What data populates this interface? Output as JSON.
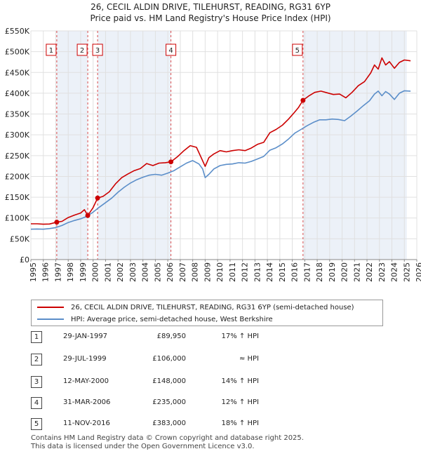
{
  "title": {
    "line1": "26, CECIL ALDIN DRIVE, TILEHURST, READING, RG31 6YP",
    "line2": "Price paid vs. HM Land Registry's House Price Index (HPI)"
  },
  "colors": {
    "property": "#cc0000",
    "hpi": "#5b8ec9",
    "shade": "#dde6f3",
    "marker": "#cc0000"
  },
  "legend": {
    "property": "26, CECIL ALDIN DRIVE, TILEHURST, READING, RG31 6YP (semi-detached house)",
    "hpi": "HPI: Average price, semi-detached house, West Berkshire"
  },
  "sales": [
    {
      "num": "1",
      "date": "29-JAN-1997",
      "price": "£89,950",
      "hpi": "17% ↑ HPI"
    },
    {
      "num": "2",
      "date": "29-JUL-1999",
      "price": "£106,000",
      "hpi": "≈ HPI"
    },
    {
      "num": "3",
      "date": "12-MAY-2000",
      "price": "£148,000",
      "hpi": "14% ↑ HPI"
    },
    {
      "num": "4",
      "date": "31-MAR-2006",
      "price": "£235,000",
      "hpi": "12% ↑ HPI"
    },
    {
      "num": "5",
      "date": "11-NOV-2016",
      "price": "£383,000",
      "hpi": "18% ↑ HPI"
    }
  ],
  "footer": {
    "line1": "Contains HM Land Registry data © Crown copyright and database right 2025.",
    "line2": "This data is licensed under the Open Government Licence v3.0."
  },
  "chart_data": {
    "type": "line",
    "title": "Price paid vs. HM Land Registry's House Price Index (HPI)",
    "xlabel": "",
    "ylabel": "",
    "xlim": [
      1995,
      2026
    ],
    "ylim": [
      0,
      550000
    ],
    "x_ticks": [
      1995,
      1996,
      1997,
      1998,
      1999,
      2000,
      2001,
      2002,
      2003,
      2004,
      2005,
      2006,
      2007,
      2008,
      2009,
      2010,
      2011,
      2012,
      2013,
      2014,
      2015,
      2016,
      2017,
      2018,
      2019,
      2020,
      2021,
      2022,
      2023,
      2024,
      2025,
      2026
    ],
    "y_ticks": [
      {
        "value": 0,
        "label": "£0"
      },
      {
        "value": 50000,
        "label": "£50K"
      },
      {
        "value": 100000,
        "label": "£100K"
      },
      {
        "value": 150000,
        "label": "£150K"
      },
      {
        "value": 200000,
        "label": "£200K"
      },
      {
        "value": 250000,
        "label": "£250K"
      },
      {
        "value": 300000,
        "label": "£300K"
      },
      {
        "value": 350000,
        "label": "£350K"
      },
      {
        "value": 400000,
        "label": "£400K"
      },
      {
        "value": 450000,
        "label": "£450K"
      },
      {
        "value": 500000,
        "label": "£500K"
      },
      {
        "value": 550000,
        "label": "£550K"
      }
    ],
    "grid": true,
    "shaded_ranges": [
      [
        1997.08,
        1999.57
      ],
      [
        2000.36,
        2006.25
      ],
      [
        2016.86,
        2025.2
      ]
    ],
    "sale_markers": [
      {
        "label": "1",
        "x": 1997.08,
        "y": 89950
      },
      {
        "label": "2",
        "x": 1999.57,
        "y": 106000
      },
      {
        "label": "3",
        "x": 2000.36,
        "y": 148000
      },
      {
        "label": "4",
        "x": 2006.25,
        "y": 235000
      },
      {
        "label": "5",
        "x": 2016.86,
        "y": 383000
      }
    ],
    "series": [
      {
        "name": "26, CECIL ALDIN DRIVE, TILEHURST, READING, RG31 6YP (semi-detached house)",
        "color": "#cc0000",
        "x": [
          1995.0,
          1995.5,
          1996.0,
          1996.5,
          1997.08,
          1997.5,
          1998.0,
          1998.5,
          1999.0,
          1999.3,
          1999.57,
          2000.0,
          2000.36,
          2000.8,
          2001.3,
          2001.8,
          2002.3,
          2002.8,
          2003.3,
          2003.8,
          2004.3,
          2004.8,
          2005.3,
          2005.8,
          2006.25,
          2006.8,
          2007.3,
          2007.8,
          2008.3,
          2008.7,
          2009.0,
          2009.3,
          2009.7,
          2010.2,
          2010.7,
          2011.2,
          2011.7,
          2012.2,
          2012.7,
          2013.2,
          2013.7,
          2014.2,
          2014.7,
          2015.2,
          2015.7,
          2016.2,
          2016.5,
          2016.86,
          2017.3,
          2017.8,
          2018.3,
          2018.8,
          2019.3,
          2019.8,
          2020.3,
          2020.8,
          2021.3,
          2021.8,
          2022.3,
          2022.6,
          2022.9,
          2023.2,
          2023.5,
          2023.8,
          2024.2,
          2024.6,
          2025.0,
          2025.5
        ],
        "values": [
          86000,
          86000,
          85000,
          85500,
          89950,
          92000,
          101000,
          107000,
          112000,
          120000,
          106000,
          125000,
          148000,
          152000,
          163000,
          182000,
          197000,
          206000,
          214000,
          219000,
          231000,
          226000,
          232000,
          233000,
          235000,
          248000,
          262000,
          274000,
          270000,
          244000,
          224000,
          245000,
          254000,
          262000,
          259000,
          262000,
          264000,
          262000,
          268000,
          277000,
          282000,
          305000,
          313000,
          323000,
          338000,
          355000,
          366000,
          383000,
          393000,
          402000,
          405000,
          401000,
          397000,
          398000,
          389000,
          402000,
          418000,
          428000,
          449000,
          468000,
          458000,
          485000,
          468000,
          476000,
          460000,
          474000,
          480000,
          478000
        ]
      },
      {
        "name": "HPI: Average price, semi-detached house, West Berkshire",
        "color": "#5b8ec9",
        "x": [
          1995.0,
          1995.5,
          1996.0,
          1996.5,
          1997.0,
          1997.5,
          1998.0,
          1998.5,
          1999.0,
          1999.5,
          2000.0,
          2000.5,
          2001.0,
          2001.5,
          2002.0,
          2002.5,
          2003.0,
          2003.5,
          2004.0,
          2004.5,
          2005.0,
          2005.5,
          2006.0,
          2006.5,
          2007.0,
          2007.5,
          2008.0,
          2008.5,
          2008.8,
          2009.0,
          2009.3,
          2009.7,
          2010.2,
          2010.7,
          2011.2,
          2011.7,
          2012.2,
          2012.7,
          2013.2,
          2013.7,
          2014.2,
          2014.7,
          2015.2,
          2015.7,
          2016.2,
          2016.7,
          2017.2,
          2017.7,
          2018.2,
          2018.7,
          2019.2,
          2019.7,
          2020.2,
          2020.7,
          2021.2,
          2021.7,
          2022.2,
          2022.6,
          2022.9,
          2023.2,
          2023.5,
          2023.8,
          2024.2,
          2024.6,
          2025.0,
          2025.5
        ],
        "values": [
          73000,
          73500,
          73000,
          74500,
          77000,
          82000,
          89000,
          94000,
          98000,
          104000,
          114000,
          126000,
          137000,
          148000,
          162000,
          174000,
          184000,
          192000,
          198000,
          203000,
          205000,
          203000,
          208000,
          214000,
          223000,
          232000,
          238000,
          230000,
          218000,
          197000,
          205000,
          218000,
          226000,
          229000,
          230000,
          233000,
          232000,
          236000,
          242000,
          248000,
          263000,
          269000,
          278000,
          290000,
          304000,
          313000,
          322000,
          330000,
          336000,
          336000,
          338000,
          337000,
          334000,
          345000,
          357000,
          370000,
          382000,
          398000,
          405000,
          394000,
          404000,
          398000,
          385000,
          400000,
          406000,
          405000
        ]
      }
    ]
  }
}
